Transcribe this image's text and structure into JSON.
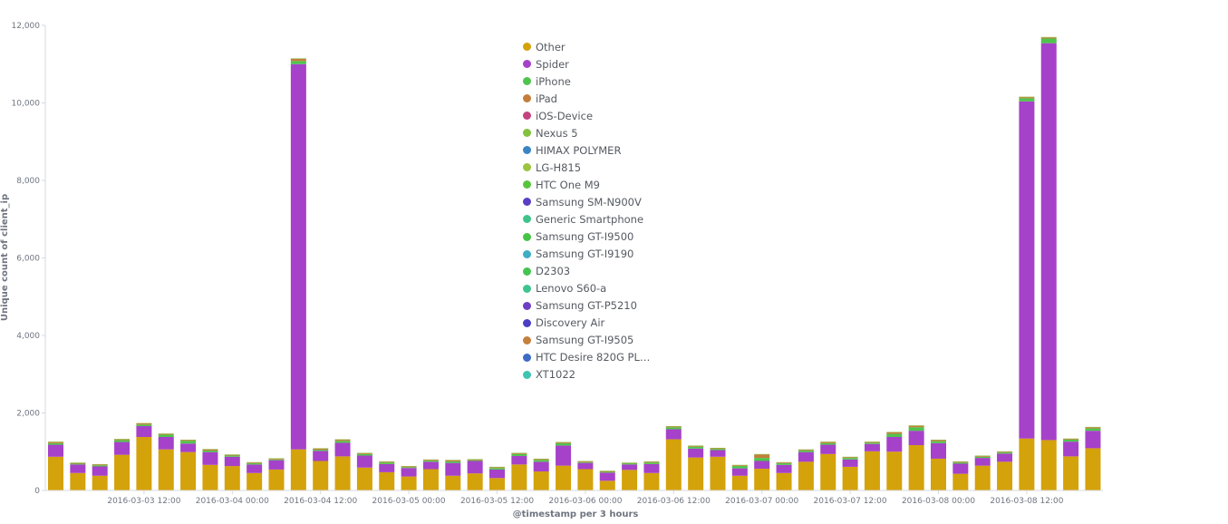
{
  "chart_data": {
    "type": "bar",
    "stacked": true,
    "xlabel": "@timestamp per 3 hours",
    "ylabel": "Unique count of client_ip",
    "ylim": [
      0,
      12000
    ],
    "y_ticks": [
      0,
      2000,
      4000,
      6000,
      8000,
      10000,
      12000
    ],
    "y_tick_labels": [
      "0",
      "2,000",
      "4,000",
      "6,000",
      "8,000",
      "10,000",
      "12,000"
    ],
    "x_tick_labels": [
      {
        "label": "2016-03-03 12:00",
        "bar_index": 4
      },
      {
        "label": "2016-03-04 00:00",
        "bar_index": 8
      },
      {
        "label": "2016-03-04 12:00",
        "bar_index": 12
      },
      {
        "label": "2016-03-05 00:00",
        "bar_index": 16
      },
      {
        "label": "2016-03-05 12:00",
        "bar_index": 20
      },
      {
        "label": "2016-03-06 00:00",
        "bar_index": 24
      },
      {
        "label": "2016-03-06 12:00",
        "bar_index": 28
      },
      {
        "label": "2016-03-07 00:00",
        "bar_index": 32
      },
      {
        "label": "2016-03-07 12:00",
        "bar_index": 36
      },
      {
        "label": "2016-03-08 00:00",
        "bar_index": 40
      },
      {
        "label": "2016-03-08 12:00",
        "bar_index": 44
      }
    ],
    "grid": false,
    "legend_position": "top-center",
    "series": [
      {
        "name": "Other",
        "color": "#d4a20a",
        "values": [
          870,
          450,
          380,
          920,
          1380,
          1060,
          990,
          660,
          630,
          450,
          540,
          1060,
          760,
          880,
          590,
          470,
          360,
          550,
          380,
          440,
          320,
          670,
          490,
          640,
          550,
          250,
          530,
          450,
          1320,
          850,
          870,
          380,
          560,
          450,
          740,
          940,
          610,
          1010,
          1000,
          1170,
          820,
          430,
          640,
          740,
          1340,
          1300,
          880,
          1090
        ]
      },
      {
        "name": "Spider",
        "color": "#a641c9",
        "values": [
          310,
          220,
          240,
          330,
          280,
          320,
          220,
          330,
          240,
          220,
          240,
          9940,
          260,
          350,
          310,
          210,
          220,
          190,
          330,
          320,
          220,
          220,
          250,
          520,
          160,
          210,
          140,
          230,
          260,
          230,
          170,
          190,
          200,
          210,
          250,
          240,
          190,
          190,
          380,
          370,
          400,
          260,
          200,
          210,
          8700,
          10240,
          380,
          450
        ]
      },
      {
        "name": "iPhone",
        "color": "#4ec44e",
        "values": [
          40,
          20,
          30,
          50,
          40,
          60,
          70,
          40,
          30,
          30,
          20,
          80,
          30,
          50,
          40,
          40,
          20,
          30,
          40,
          20,
          40,
          50,
          50,
          60,
          20,
          20,
          30,
          40,
          50,
          50,
          30,
          60,
          80,
          40,
          40,
          40,
          40,
          30,
          80,
          90,
          50,
          30,
          30,
          30,
          80,
          120,
          50,
          60
        ]
      },
      {
        "name": "iPad",
        "color": "#c47e3a",
        "values": [
          30,
          20,
          20,
          20,
          30,
          20,
          20,
          30,
          20,
          20,
          20,
          60,
          30,
          30,
          20,
          20,
          20,
          20,
          30,
          20,
          20,
          20,
          20,
          20,
          20,
          20,
          10,
          20,
          20,
          20,
          20,
          20,
          90,
          20,
          20,
          30,
          20,
          20,
          40,
          40,
          30,
          20,
          20,
          20,
          30,
          30,
          20,
          30
        ]
      },
      {
        "name": "iOS-Device",
        "color": "#c4437e",
        "values": [
          0,
          0,
          0,
          0,
          0,
          0,
          0,
          0,
          0,
          0,
          0,
          0,
          0,
          0,
          0,
          0,
          0,
          0,
          0,
          0,
          0,
          0,
          0,
          0,
          0,
          0,
          0,
          0,
          0,
          0,
          0,
          0,
          0,
          0,
          0,
          0,
          0,
          0,
          0,
          0,
          0,
          0,
          0,
          0,
          0,
          0,
          0,
          0
        ]
      },
      {
        "name": "Nexus 5",
        "color": "#83c23d",
        "values": [
          10,
          10,
          10,
          10,
          10,
          10,
          10,
          10,
          10,
          10,
          10,
          10,
          10,
          10,
          10,
          10,
          10,
          10,
          10,
          10,
          10,
          10,
          10,
          10,
          10,
          10,
          10,
          10,
          10,
          10,
          10,
          10,
          10,
          10,
          10,
          10,
          10,
          10,
          10,
          10,
          10,
          10,
          10,
          10,
          10,
          10,
          10,
          10
        ]
      },
      {
        "name": "HIMAX POLYMER",
        "color": "#3b84c4",
        "values": [
          0,
          0,
          0,
          0,
          0,
          0,
          0,
          0,
          0,
          0,
          0,
          0,
          0,
          0,
          0,
          0,
          0,
          0,
          0,
          0,
          0,
          0,
          0,
          0,
          0,
          0,
          0,
          0,
          0,
          0,
          0,
          0,
          0,
          0,
          0,
          0,
          0,
          0,
          0,
          0,
          0,
          0,
          0,
          0,
          0,
          0,
          0,
          0
        ]
      },
      {
        "name": "LG-H815",
        "color": "#9ac43e",
        "values": [
          0,
          0,
          0,
          0,
          0,
          0,
          0,
          0,
          0,
          0,
          0,
          0,
          0,
          0,
          0,
          0,
          0,
          0,
          0,
          0,
          0,
          0,
          0,
          0,
          0,
          0,
          0,
          0,
          0,
          0,
          0,
          0,
          0,
          0,
          0,
          0,
          0,
          0,
          0,
          0,
          0,
          0,
          0,
          0,
          0,
          0,
          0,
          0
        ]
      },
      {
        "name": "HTC One M9",
        "color": "#58c43e",
        "values": [
          0,
          0,
          0,
          0,
          0,
          0,
          0,
          0,
          0,
          0,
          0,
          0,
          0,
          0,
          0,
          0,
          0,
          0,
          0,
          0,
          0,
          0,
          0,
          0,
          0,
          0,
          0,
          0,
          0,
          0,
          0,
          0,
          0,
          0,
          0,
          0,
          0,
          0,
          0,
          0,
          0,
          0,
          0,
          0,
          0,
          0,
          0,
          0
        ]
      },
      {
        "name": "Samsung SM-N900V",
        "color": "#5a3fc4",
        "values": [
          0,
          0,
          0,
          0,
          0,
          0,
          0,
          0,
          0,
          0,
          0,
          0,
          0,
          0,
          0,
          0,
          0,
          0,
          0,
          0,
          0,
          0,
          0,
          0,
          0,
          0,
          0,
          0,
          0,
          0,
          0,
          0,
          0,
          0,
          0,
          0,
          0,
          0,
          0,
          0,
          0,
          0,
          0,
          0,
          0,
          0,
          0,
          0
        ]
      },
      {
        "name": "Generic Smartphone",
        "color": "#3ec48a",
        "values": [
          0,
          0,
          0,
          0,
          0,
          0,
          0,
          0,
          0,
          0,
          0,
          0,
          0,
          0,
          0,
          0,
          0,
          0,
          0,
          0,
          0,
          0,
          0,
          0,
          0,
          0,
          0,
          0,
          0,
          0,
          0,
          0,
          0,
          0,
          0,
          0,
          0,
          0,
          0,
          0,
          0,
          0,
          0,
          0,
          0,
          0,
          0,
          0
        ]
      },
      {
        "name": "Samsung GT-I9500",
        "color": "#46c446",
        "values": [
          0,
          0,
          0,
          0,
          0,
          0,
          0,
          0,
          0,
          0,
          0,
          0,
          0,
          0,
          0,
          0,
          0,
          0,
          0,
          0,
          0,
          0,
          0,
          0,
          0,
          0,
          0,
          0,
          0,
          0,
          0,
          0,
          0,
          0,
          0,
          0,
          0,
          0,
          0,
          0,
          0,
          0,
          0,
          0,
          0,
          0,
          0,
          0
        ]
      },
      {
        "name": "Samsung GT-I9190",
        "color": "#3eaec4",
        "values": [
          0,
          0,
          0,
          0,
          0,
          0,
          0,
          0,
          0,
          0,
          0,
          0,
          0,
          0,
          0,
          0,
          0,
          0,
          0,
          0,
          0,
          0,
          0,
          0,
          0,
          0,
          0,
          0,
          0,
          0,
          0,
          0,
          0,
          0,
          0,
          0,
          0,
          0,
          0,
          0,
          0,
          0,
          0,
          0,
          0,
          0,
          0,
          0
        ]
      },
      {
        "name": "D2303",
        "color": "#44c450",
        "values": [
          0,
          0,
          0,
          0,
          0,
          0,
          0,
          0,
          0,
          0,
          0,
          0,
          0,
          0,
          0,
          0,
          0,
          0,
          0,
          0,
          0,
          0,
          0,
          0,
          0,
          0,
          0,
          0,
          0,
          0,
          0,
          0,
          0,
          0,
          0,
          0,
          0,
          0,
          0,
          0,
          0,
          0,
          0,
          0,
          0,
          0,
          0,
          0
        ]
      },
      {
        "name": "Lenovo S60-a",
        "color": "#3ec48f",
        "values": [
          0,
          0,
          0,
          0,
          0,
          0,
          0,
          0,
          0,
          0,
          0,
          0,
          0,
          0,
          0,
          0,
          0,
          0,
          0,
          0,
          0,
          0,
          0,
          0,
          0,
          0,
          0,
          0,
          0,
          0,
          0,
          0,
          0,
          0,
          0,
          0,
          0,
          0,
          0,
          0,
          0,
          0,
          0,
          0,
          0,
          0,
          0,
          0
        ]
      },
      {
        "name": "Samsung GT-P5210",
        "color": "#6e3ec4",
        "values": [
          0,
          0,
          0,
          0,
          0,
          0,
          0,
          0,
          0,
          0,
          0,
          0,
          0,
          0,
          0,
          0,
          0,
          0,
          0,
          0,
          0,
          0,
          0,
          0,
          0,
          0,
          0,
          0,
          0,
          0,
          0,
          0,
          0,
          0,
          0,
          0,
          0,
          0,
          0,
          0,
          0,
          0,
          0,
          0,
          0,
          0,
          0,
          0
        ]
      },
      {
        "name": "Discovery Air",
        "color": "#4a3ec4",
        "values": [
          0,
          0,
          0,
          0,
          0,
          0,
          0,
          0,
          0,
          0,
          0,
          0,
          0,
          0,
          0,
          0,
          0,
          0,
          0,
          0,
          0,
          0,
          0,
          0,
          0,
          0,
          0,
          0,
          0,
          0,
          0,
          0,
          0,
          0,
          0,
          0,
          0,
          0,
          0,
          0,
          0,
          0,
          0,
          0,
          0,
          0,
          0,
          0
        ]
      },
      {
        "name": "Samsung GT-I9505",
        "color": "#c4803e",
        "values": [
          0,
          0,
          0,
          0,
          0,
          0,
          0,
          0,
          0,
          0,
          0,
          0,
          0,
          0,
          0,
          0,
          0,
          0,
          0,
          0,
          0,
          0,
          0,
          0,
          0,
          0,
          0,
          0,
          0,
          0,
          0,
          0,
          0,
          0,
          0,
          0,
          0,
          0,
          0,
          0,
          0,
          0,
          0,
          0,
          0,
          0,
          0,
          0
        ]
      },
      {
        "name": "HTC Desire 820G PL…",
        "color": "#3e6bc4",
        "values": [
          0,
          0,
          0,
          0,
          0,
          0,
          0,
          0,
          0,
          0,
          0,
          0,
          0,
          0,
          0,
          0,
          0,
          0,
          0,
          0,
          0,
          0,
          0,
          0,
          0,
          0,
          0,
          0,
          0,
          0,
          0,
          0,
          0,
          0,
          0,
          0,
          0,
          0,
          0,
          0,
          0,
          0,
          0,
          0,
          0,
          0,
          0,
          0
        ]
      },
      {
        "name": "XT1022",
        "color": "#3ec4b3",
        "values": [
          0,
          0,
          0,
          0,
          0,
          0,
          0,
          0,
          0,
          0,
          0,
          0,
          0,
          0,
          0,
          0,
          0,
          0,
          0,
          0,
          0,
          0,
          0,
          0,
          0,
          0,
          0,
          0,
          0,
          0,
          0,
          0,
          0,
          0,
          0,
          0,
          0,
          0,
          0,
          0,
          0,
          0,
          0,
          0,
          0,
          0,
          0,
          0
        ]
      }
    ]
  }
}
